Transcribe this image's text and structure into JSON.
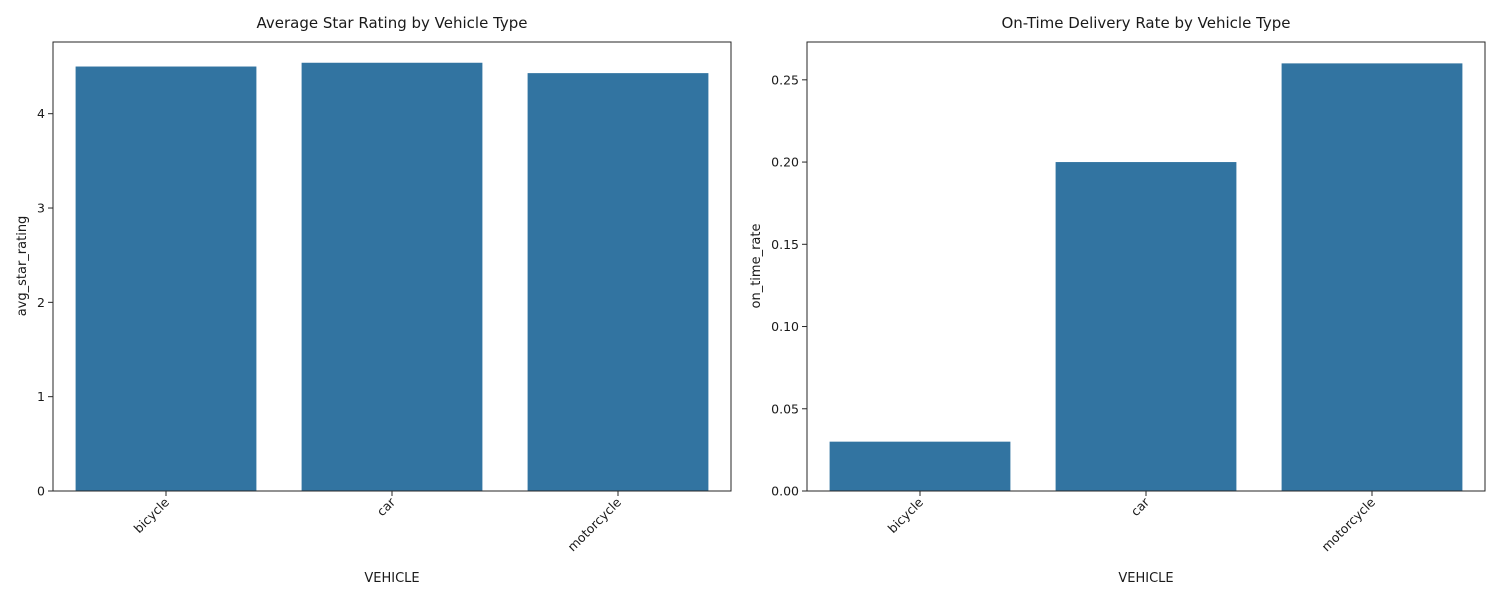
{
  "chart_data": [
    {
      "type": "bar",
      "title": "Average Star Rating by Vehicle Type",
      "xlabel": "VEHICLE",
      "ylabel": "avg_star_rating",
      "categories": [
        "bicycle",
        "car",
        "motorcycle"
      ],
      "values": [
        4.5,
        4.54,
        4.43
      ],
      "ylim": [
        0,
        4.76
      ],
      "yticks": [
        0,
        1,
        2,
        3,
        4
      ],
      "ytick_labels": [
        "0",
        "1",
        "2",
        "3",
        "4"
      ],
      "xtick_rotation": 45,
      "grid": false,
      "bar_color": "#3274a1"
    },
    {
      "type": "bar",
      "title": "On-Time Delivery Rate by Vehicle Type",
      "xlabel": "VEHICLE",
      "ylabel": "on_time_rate",
      "categories": [
        "bicycle",
        "car",
        "motorcycle"
      ],
      "values": [
        0.03,
        0.2,
        0.26
      ],
      "ylim": [
        0,
        0.273
      ],
      "yticks": [
        0,
        0.05,
        0.1,
        0.15,
        0.2,
        0.25
      ],
      "ytick_labels": [
        "0.00",
        "0.05",
        "0.10",
        "0.15",
        "0.20",
        "0.25"
      ],
      "xtick_rotation": 45,
      "grid": false,
      "bar_color": "#3274a1"
    }
  ]
}
